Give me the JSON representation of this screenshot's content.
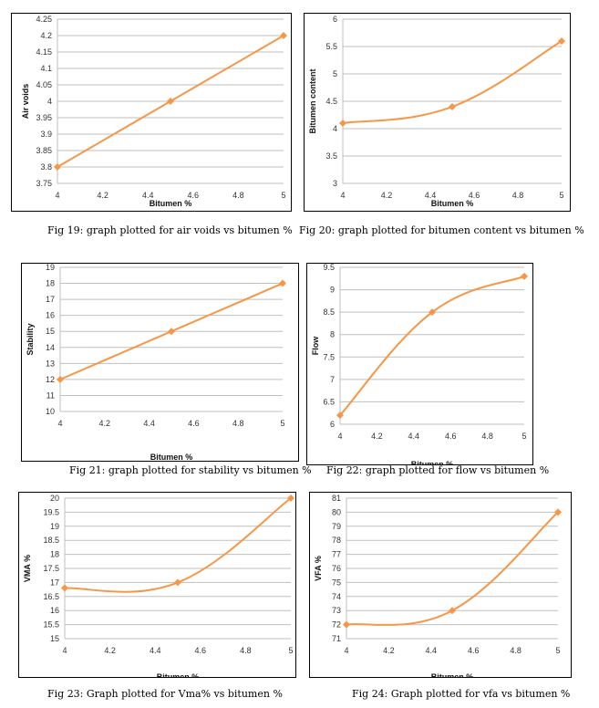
{
  "accent_color": "#F79646",
  "grid_color": "#BFBFBF",
  "chart_data": [
    {
      "type": "line",
      "xlabel": "Bitumen  %",
      "ylabel": "Air voids",
      "xlim": [
        4,
        5
      ],
      "ylim": [
        3.75,
        4.25
      ],
      "x_ticks": [
        "4",
        "4.2",
        "4.4",
        "4.6",
        "4.8",
        "5"
      ],
      "y_ticks": [
        "3.75",
        "3.8",
        "3.85",
        "3.9",
        "3.95",
        "4",
        "4.05",
        "4.1",
        "4.15",
        "4.2",
        "4.25"
      ],
      "series": [
        {
          "x": [
            4,
            4.5,
            5
          ],
          "y": [
            3.8,
            4.0,
            4.2
          ],
          "smooth": false
        }
      ],
      "grid": true
    },
    {
      "type": "line",
      "xlabel": "Bitumen %",
      "ylabel": "Bitumen content",
      "xlim": [
        4,
        5
      ],
      "ylim": [
        3,
        6
      ],
      "x_ticks": [
        "4",
        "4.2",
        "4.4",
        "4.6",
        "4.8",
        "5"
      ],
      "y_ticks": [
        "3",
        "3.5",
        "4",
        "4.5",
        "5",
        "5.5",
        "6"
      ],
      "series": [
        {
          "x": [
            4,
            4.5,
            5
          ],
          "y": [
            4.1,
            4.4,
            5.6
          ],
          "smooth": true
        }
      ],
      "grid": true
    },
    {
      "type": "line",
      "xlabel": "Bitumen %",
      "ylabel": "Stability",
      "xlim": [
        4,
        5
      ],
      "ylim": [
        10,
        19
      ],
      "x_ticks": [
        "4",
        "4.2",
        "4.4",
        "4.6",
        "4.8",
        "5"
      ],
      "y_ticks": [
        "10",
        "11",
        "12",
        "13",
        "14",
        "15",
        "16",
        "17",
        "18",
        "19"
      ],
      "series": [
        {
          "x": [
            4,
            4.5,
            5
          ],
          "y": [
            12,
            15,
            18
          ],
          "smooth": false
        }
      ],
      "grid": true
    },
    {
      "type": "line",
      "xlabel": "Bitumen %",
      "ylabel": "Flow",
      "xlim": [
        4,
        5
      ],
      "ylim": [
        6,
        9.5
      ],
      "x_ticks": [
        "4",
        "4.2",
        "4.4",
        "4.6",
        "4.8",
        "5"
      ],
      "y_ticks": [
        "6",
        "6.5",
        "7",
        "7.5",
        "8",
        "8.5",
        "9",
        "9.5"
      ],
      "series": [
        {
          "x": [
            4,
            4.5,
            5
          ],
          "y": [
            6.2,
            8.5,
            9.3
          ],
          "smooth": true
        }
      ],
      "grid": true
    },
    {
      "type": "line",
      "xlabel": "Bitumen %",
      "ylabel": "VMA %",
      "xlim": [
        4,
        5
      ],
      "ylim": [
        15,
        20
      ],
      "x_ticks": [
        "4",
        "4.2",
        "4.4",
        "4.6",
        "4.8",
        "5"
      ],
      "y_ticks": [
        "15",
        "15.5",
        "16",
        "16.5",
        "17",
        "17.5",
        "18",
        "18.5",
        "19",
        "19.5",
        "20"
      ],
      "series": [
        {
          "x": [
            4,
            4.5,
            5
          ],
          "y": [
            16.8,
            17.0,
            20.0
          ],
          "smooth": true
        }
      ],
      "grid": true
    },
    {
      "type": "line",
      "xlabel": "Bitumen %",
      "ylabel": "VFA %",
      "xlim": [
        4,
        5
      ],
      "ylim": [
        71,
        81
      ],
      "x_ticks": [
        "4",
        "4.2",
        "4.4",
        "4.6",
        "4.8",
        "5"
      ],
      "y_ticks": [
        "71",
        "72",
        "73",
        "74",
        "75",
        "76",
        "77",
        "78",
        "79",
        "80",
        "81"
      ],
      "series": [
        {
          "x": [
            4,
            4.5,
            5
          ],
          "y": [
            72,
            73,
            80
          ],
          "smooth": true
        }
      ],
      "grid": true
    }
  ],
  "captions": [
    "Fig 19: graph plotted for air voids vs bitumen %",
    "Fig 20: graph plotted for bitumen content vs bitumen %",
    "Fig 21: graph plotted for stability vs bitumen %",
    "Fig 22: graph plotted for flow vs bitumen %",
    "Fig 23: Graph plotted for Vma% vs bitumen %",
    "Fig 24: Graph plotted for vfa vs bitumen %"
  ]
}
